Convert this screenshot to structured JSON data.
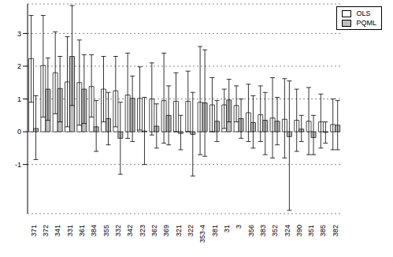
{
  "chart_data": {
    "type": "bar",
    "categories": [
      "371",
      "372",
      "341",
      "331",
      "361",
      "384",
      "355",
      "332",
      "342",
      "323",
      "362",
      "369",
      "321",
      "322",
      "353-4",
      "381",
      "31",
      "3",
      "356",
      "383",
      "352",
      "324",
      "390",
      "351",
      "385",
      "382"
    ],
    "series": [
      {
        "name": "OLS",
        "color": "#ffffff",
        "values": [
          2.23,
          2.02,
          1.8,
          1.52,
          1.5,
          1.38,
          1.3,
          1.25,
          1.12,
          1.02,
          1.0,
          0.95,
          0.93,
          0.93,
          0.9,
          0.82,
          0.82,
          0.8,
          0.58,
          0.52,
          0.42,
          0.38,
          0.35,
          0.32,
          0.3,
          0.22
        ],
        "lower": [
          0.9,
          0.45,
          0.55,
          0.15,
          0.2,
          0.45,
          0.3,
          0.15,
          -0.2,
          0.05,
          -0.1,
          -0.35,
          0.0,
          0.0,
          -0.7,
          0.0,
          0.1,
          0.3,
          -0.3,
          -0.3,
          -0.8,
          -0.8,
          -0.6,
          -0.7,
          -0.5,
          -0.55
        ],
        "upper": [
          3.55,
          3.55,
          3.05,
          2.9,
          2.8,
          2.35,
          2.3,
          2.3,
          2.4,
          1.98,
          2.1,
          2.4,
          1.8,
          1.85,
          2.6,
          1.65,
          1.3,
          1.4,
          1.45,
          1.4,
          1.65,
          1.62,
          1.3,
          1.35,
          1.15,
          1.0
        ]
      },
      {
        "name": "PQML",
        "color": "#bdbdbd",
        "values": [
          0.1,
          1.3,
          1.32,
          2.3,
          1.3,
          0.15,
          0.4,
          -0.2,
          1.02,
          0.02,
          0.17,
          0.5,
          -0.05,
          -0.08,
          0.88,
          0.32,
          0.97,
          0.4,
          0.28,
          0.35,
          0.32,
          -0.15,
          0.08,
          -0.18,
          -0.02,
          0.2
        ],
        "lower": [
          -0.85,
          0.35,
          0.3,
          0.8,
          0.25,
          -0.6,
          -0.4,
          -1.3,
          -0.3,
          -1.0,
          -0.5,
          -0.4,
          -0.55,
          -1.35,
          -0.75,
          -0.3,
          0.3,
          -0.2,
          -0.5,
          -0.7,
          -0.4,
          -2.4,
          -0.3,
          -0.7,
          -0.35,
          -0.55
        ],
        "upper": [
          1.1,
          2.25,
          2.3,
          3.85,
          2.35,
          0.95,
          1.2,
          0.9,
          1.7,
          1.05,
          0.85,
          1.4,
          0.5,
          1.2,
          2.5,
          0.95,
          1.6,
          1.0,
          1.1,
          1.2,
          1.05,
          1.55,
          0.5,
          0.5,
          0.3,
          0.95
        ]
      }
    ],
    "ylim": [
      -2.5,
      3.9
    ],
    "yticks": [
      -1,
      0,
      1,
      2,
      3
    ],
    "grid": true,
    "legend": "top-right"
  }
}
